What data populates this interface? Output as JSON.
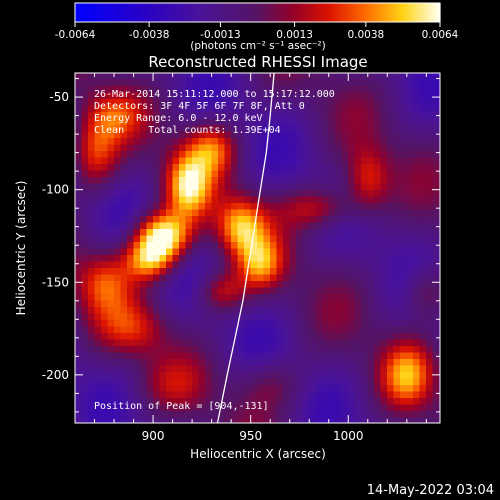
{
  "chart_data": {
    "type": "heatmap",
    "title": "Reconstructed RHESSI Image",
    "xlabel": "Heliocentric X (arcsec)",
    "ylabel": "Heliocentric Y (arcsec)",
    "xlim": [
      860,
      1047
    ],
    "ylim": [
      -226,
      -37
    ],
    "x_ticks": [
      900,
      950,
      1000
    ],
    "y_ticks": [
      -50,
      -100,
      -150,
      -200
    ],
    "colorbar": {
      "range": [
        -0.0064,
        0.0064
      ],
      "tick_values": [
        -0.0064,
        -0.0038,
        -0.0013,
        0.0013,
        0.0038,
        0.0064
      ],
      "tick_labels": [
        "-0.0064",
        "-0.0038",
        "-0.0013",
        "0.0013",
        "0.0038",
        "0.0064"
      ],
      "units_label": "(photons cm⁻² s⁻¹ asec⁻²)"
    },
    "annotations": [
      "26-Mar-2014 15:11:12.000 to 15:17:12.000",
      "Detectors: 3F 4F 5F 6F 7F 8F, Att 0",
      "Energy Range: 6.0 - 12.0 keV",
      "Clean    Total counts: 1.39E+04"
    ],
    "peak_label": "Position of Peak = [904,-131]",
    "peak": {
      "x": 904,
      "y": -131
    },
    "limb_curve": [
      [
        933,
        -226
      ],
      [
        938,
        -200
      ],
      [
        942,
        -180
      ],
      [
        946,
        -160
      ],
      [
        949,
        -140
      ],
      [
        952,
        -120
      ],
      [
        955,
        -100
      ],
      [
        958,
        -80
      ],
      [
        960,
        -60
      ],
      [
        962,
        -37
      ]
    ],
    "features": [
      {
        "x": 905,
        "y": -125,
        "amp": 1.0,
        "sx": 10,
        "sy": 9
      },
      {
        "x": 898,
        "y": -138,
        "amp": 0.7,
        "sx": 9,
        "sy": 8
      },
      {
        "x": 918,
        "y": -98,
        "amp": 0.75,
        "sx": 8,
        "sy": 12
      },
      {
        "x": 930,
        "y": -78,
        "amp": 0.55,
        "sx": 9,
        "sy": 10
      },
      {
        "x": 945,
        "y": -120,
        "amp": 0.7,
        "sx": 9,
        "sy": 11
      },
      {
        "x": 955,
        "y": -140,
        "amp": 0.55,
        "sx": 8,
        "sy": 10
      },
      {
        "x": 935,
        "y": -155,
        "amp": 0.45,
        "sx": 9,
        "sy": 8
      },
      {
        "x": 870,
        "y": -80,
        "amp": 0.55,
        "sx": 9,
        "sy": 14
      },
      {
        "x": 875,
        "y": -150,
        "amp": 0.45,
        "sx": 10,
        "sy": 12
      },
      {
        "x": 890,
        "y": -175,
        "amp": 0.35,
        "sx": 12,
        "sy": 10
      },
      {
        "x": 985,
        "y": -110,
        "amp": 0.45,
        "sx": 14,
        "sy": 8
      },
      {
        "x": 1010,
        "y": -95,
        "amp": 0.5,
        "sx": 8,
        "sy": 12
      },
      {
        "x": 1040,
        "y": -155,
        "amp": 0.35,
        "sx": 8,
        "sy": 10
      },
      {
        "x": 1030,
        "y": -200,
        "amp": 0.55,
        "sx": 9,
        "sy": 12
      },
      {
        "x": 960,
        "y": -205,
        "amp": 0.25,
        "sx": 12,
        "sy": 10
      },
      {
        "x": 910,
        "y": -205,
        "amp": 0.2,
        "sx": 12,
        "sy": 10
      },
      {
        "x": 880,
        "y": -60,
        "amp": 0.35,
        "sx": 10,
        "sy": 9
      }
    ],
    "grid": false,
    "colormap": "red-temperature"
  },
  "footer": {
    "timestamp": "14-May-2022 03:04"
  }
}
